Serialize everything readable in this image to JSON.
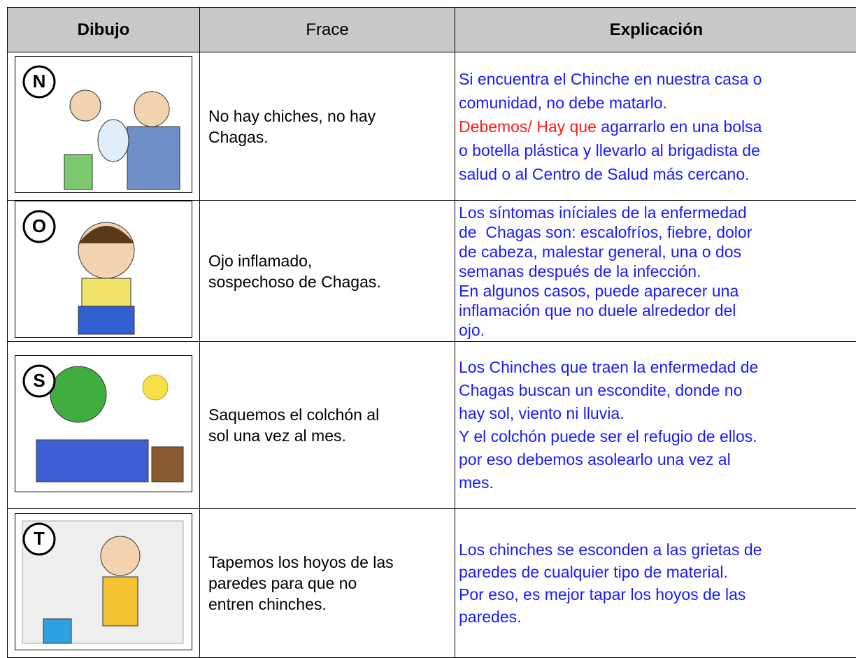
{
  "header": {
    "dibujo": "Dibujo",
    "frace": "Frace",
    "explicacion": "Explicación"
  },
  "rows": [
    {
      "badge": "N",
      "frace": [
        "No hay chiches, no hay",
        "Chagas."
      ],
      "explicacion": [
        [
          {
            "text": "Si encuentra el Chinche en nuestra casa o",
            "color": "#1a1aff"
          }
        ],
        [
          {
            "text": "comunidad, no debe matarlo.",
            "color": "#1a1aff"
          }
        ],
        [
          {
            "text": "Debemos/ Hay que",
            "color": "#ff1a1a"
          },
          {
            "text": " agarrarlo en una bolsa",
            "color": "#1a1aff"
          }
        ],
        [
          {
            "text": "o botella plástica y llevarlo al brigadista de",
            "color": "#1a1aff"
          }
        ],
        [
          {
            "text": "salud o al Centro de Salud más cercano.",
            "color": "#1a1aff"
          }
        ]
      ]
    },
    {
      "badge": "O",
      "frace": [
        "Ojo inflamado,",
        "sospechoso de Chagas."
      ],
      "explicacion": [
        [
          {
            "text": "Los síntomas iníciales de la enfermedad",
            "color": "#1a1aff"
          }
        ],
        [
          {
            "text": "de  Chagas son: escalofríos, fiebre, dolor",
            "color": "#1a1aff"
          }
        ],
        [
          {
            "text": "de cabeza, malestar general, una o dos",
            "color": "#1a1aff"
          }
        ],
        [
          {
            "text": "semanas después de la infección.",
            "color": "#1a1aff"
          }
        ],
        [
          {
            "text": "En algunos casos, puede aparecer una",
            "color": "#1a1aff"
          }
        ],
        [
          {
            "text": "inflamación que no duele alrededor del",
            "color": "#1a1aff"
          }
        ],
        [
          {
            "text": "ojo.",
            "color": "#1a1aff"
          }
        ]
      ]
    },
    {
      "badge": "S",
      "frace": [
        " Saquemos el colchón al",
        " sol una vez al mes."
      ],
      "explicacion": [
        [
          {
            "text": "Los Chinches que traen la enfermedad de",
            "color": "#1a1aff"
          }
        ],
        [
          {
            "text": "Chagas buscan un escondite, donde no",
            "color": "#1a1aff"
          }
        ],
        [
          {
            "text": "hay sol, viento ni lluvia.",
            "color": "#1a1aff"
          }
        ],
        [
          {
            "text": "Y el colchón puede ser el refugio de ellos.",
            "color": "#1a1aff"
          }
        ],
        [
          {
            "text": "por eso debemos asolearlo una vez al",
            "color": "#1a1aff"
          }
        ],
        [
          {
            "text": "mes.",
            "color": "#1a1aff"
          }
        ]
      ]
    },
    {
      "badge": "T",
      "frace": [
        "Tapemos los hoyos de las",
        "paredes para que no",
        "entren chinches."
      ],
      "explicacion": [
        [
          {
            "text": "Los chinches se esconden a las grietas de",
            "color": "#1a1aff"
          }
        ],
        [
          {
            "text": "paredes de cualquier tipo de material.",
            "color": "#1a1aff"
          }
        ],
        [
          {
            "text": "Por eso, es mejor tapar los hoyos de las",
            "color": "#1a1aff"
          }
        ],
        [
          {
            "text": "paredes.",
            "color": "#1a1aff"
          }
        ]
      ]
    }
  ]
}
